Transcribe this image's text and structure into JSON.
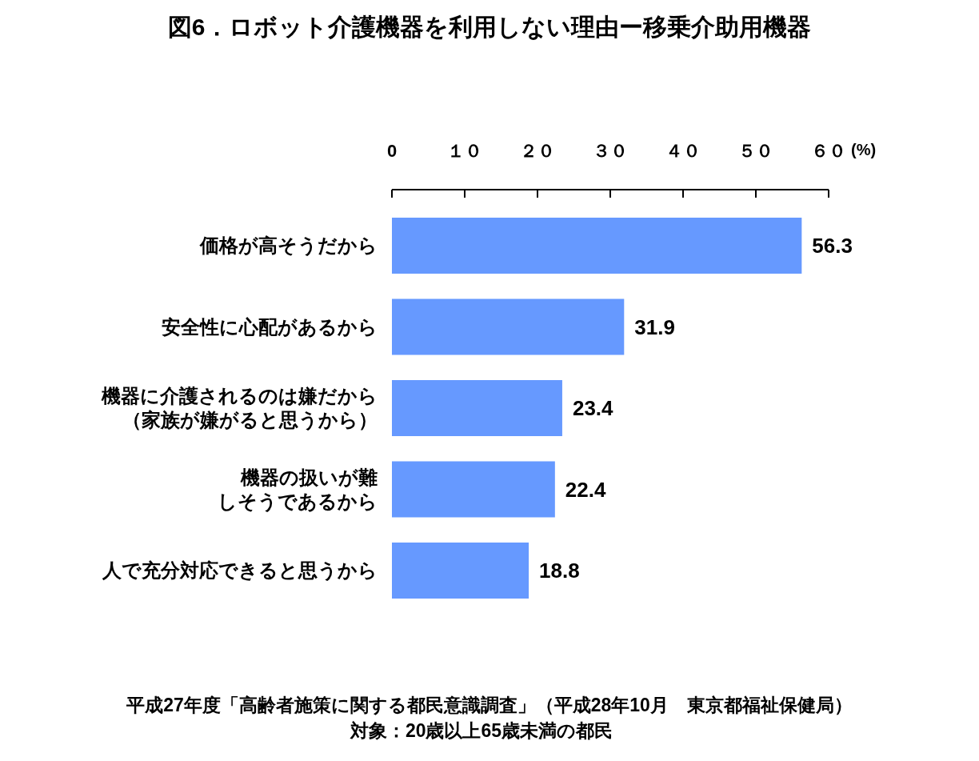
{
  "chart_data": {
    "type": "bar",
    "orientation": "horizontal",
    "title": "図6．ロボット介護機器を利用しない理由ー移乗介助用機器",
    "xlabel": "(%)",
    "categories": [
      "価格が高そうだから",
      "安全性に心配があるから",
      "機器に介護されるのは嫌だから（家族が嫌がると思うから）",
      "機器の扱いが難しそうであるから",
      "人で充分対応できると思うから"
    ],
    "values": [
      56.3,
      31.9,
      23.4,
      22.4,
      18.8
    ],
    "color": "#6699ff",
    "xlim": [
      0,
      60
    ],
    "xticks": [
      {
        "value": 0,
        "label": "0"
      },
      {
        "value": 10,
        "label": "１０"
      },
      {
        "value": 20,
        "label": "２０"
      },
      {
        "value": 30,
        "label": "３０"
      },
      {
        "value": 40,
        "label": "４０"
      },
      {
        "value": 50,
        "label": "５０"
      },
      {
        "value": 60,
        "label": "６０"
      }
    ],
    "data_labels": true,
    "grid": false,
    "legend": false,
    "annotations": [
      "平成27年度「高齢者施策に関する都民意識調査」（平成28年10月　東京都福祉保健局）",
      "対象：20歳以上65歳未満の都民"
    ]
  }
}
